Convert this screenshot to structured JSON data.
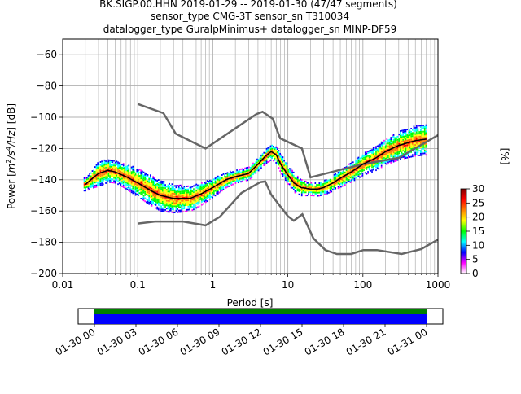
{
  "chart_data": {
    "type": "heatmap",
    "title_lines": [
      "BK.SIGP.00.HHN   2019-01-29 -- 2019-01-30  (47/47 segments)",
      "sensor_type CMG-3T sensor_sn T310034",
      "datalogger_type GuralpMinimus+ datalogger_sn MINP-DF59"
    ],
    "xlabel": "Period [s]",
    "ylabel_parts": [
      "Power [",
      "m",
      "2",
      "/s",
      "4",
      "/Hz",
      "] [dB]"
    ],
    "x_scale": "log",
    "xlim": [
      0.01,
      1000
    ],
    "ylim": [
      -200,
      -50
    ],
    "grid": true,
    "x_tick_labels": [
      "0.01",
      "0.1",
      "1",
      "10",
      "100",
      "1000"
    ],
    "y_tick_labels": [
      "-200",
      "-180",
      "-160",
      "-140",
      "-120",
      "-100",
      "-80",
      "-60"
    ],
    "colorbar": {
      "label": "[%]",
      "range": [
        0,
        30
      ],
      "tick_labels": [
        "0",
        "5",
        "10",
        "15",
        "20",
        "25",
        "30"
      ],
      "colors": [
        "#ffffff",
        "#ff00ff",
        "#0000ff",
        "#00ffff",
        "#00ff00",
        "#ffff00",
        "#ff8000",
        "#ff0000",
        "#800000"
      ]
    },
    "noise_model_high": [
      [
        0.1,
        -91.5
      ],
      [
        0.22,
        -97.4
      ],
      [
        0.32,
        -110.5
      ],
      [
        0.8,
        -120
      ],
      [
        3.8,
        -98
      ],
      [
        4.6,
        -96.5
      ],
      [
        6.3,
        -101
      ],
      [
        7.9,
        -113.5
      ],
      [
        15.4,
        -120
      ],
      [
        20,
        -138.5
      ],
      [
        100,
        -130
      ],
      [
        300,
        -126
      ],
      [
        1000,
        -111.5
      ]
    ],
    "noise_model_low": [
      [
        0.1,
        -168
      ],
      [
        0.17,
        -166.7
      ],
      [
        0.4,
        -166.7
      ],
      [
        0.8,
        -169.2
      ],
      [
        1.24,
        -163.7
      ],
      [
        2.4,
        -148.5
      ],
      [
        4.3,
        -141.5
      ],
      [
        5.0,
        -141.1
      ],
      [
        6.0,
        -149.5
      ],
      [
        10,
        -163.3
      ],
      [
        12,
        -166.2
      ],
      [
        15.6,
        -162.1
      ],
      [
        21.9,
        -177.5
      ],
      [
        31.6,
        -185
      ],
      [
        45,
        -187.5
      ],
      [
        70,
        -187.5
      ],
      [
        101,
        -185
      ],
      [
        154,
        -185
      ],
      [
        328,
        -187.5
      ],
      [
        600,
        -184.4
      ],
      [
        1000,
        -178.3
      ]
    ],
    "mode_curve": [
      [
        0.02,
        -143
      ],
      [
        0.025,
        -139
      ],
      [
        0.03,
        -136
      ],
      [
        0.04,
        -134
      ],
      [
        0.05,
        -135
      ],
      [
        0.07,
        -138
      ],
      [
        0.1,
        -142
      ],
      [
        0.15,
        -147
      ],
      [
        0.2,
        -150
      ],
      [
        0.3,
        -152
      ],
      [
        0.5,
        -152
      ],
      [
        0.7,
        -149
      ],
      [
        1.0,
        -145
      ],
      [
        1.5,
        -140
      ],
      [
        2,
        -138
      ],
      [
        3,
        -136
      ],
      [
        4,
        -130
      ],
      [
        5,
        -125
      ],
      [
        6,
        -122
      ],
      [
        7,
        -124
      ],
      [
        8,
        -130
      ],
      [
        10,
        -137
      ],
      [
        12,
        -142
      ],
      [
        15,
        -145
      ],
      [
        20,
        -146
      ],
      [
        25,
        -146
      ],
      [
        30,
        -145
      ],
      [
        40,
        -142
      ],
      [
        50,
        -139
      ],
      [
        70,
        -135
      ],
      [
        100,
        -130
      ],
      [
        150,
        -126
      ],
      [
        200,
        -122
      ],
      [
        300,
        -118
      ],
      [
        500,
        -115
      ],
      [
        700,
        -114
      ]
    ],
    "spread": [
      [
        0.02,
        4
      ],
      [
        0.03,
        8
      ],
      [
        0.05,
        7
      ],
      [
        0.1,
        9
      ],
      [
        0.2,
        10
      ],
      [
        0.3,
        9
      ],
      [
        0.5,
        8
      ],
      [
        1,
        6
      ],
      [
        2,
        4
      ],
      [
        4,
        4
      ],
      [
        6,
        5
      ],
      [
        8,
        6
      ],
      [
        12,
        6
      ],
      [
        20,
        4
      ],
      [
        40,
        5
      ],
      [
        100,
        7
      ],
      [
        300,
        9
      ],
      [
        700,
        10
      ]
    ],
    "timeline": {
      "range_hours": [
        0,
        24
      ],
      "tick_labels": [
        "01-30 00",
        "01-30 03",
        "01-30 06",
        "01-30 09",
        "01-30 12",
        "01-30 15",
        "01-30 18",
        "01-30 21",
        "01-31 00"
      ],
      "bar_colors": [
        "#008000",
        "#0000ff"
      ]
    }
  }
}
